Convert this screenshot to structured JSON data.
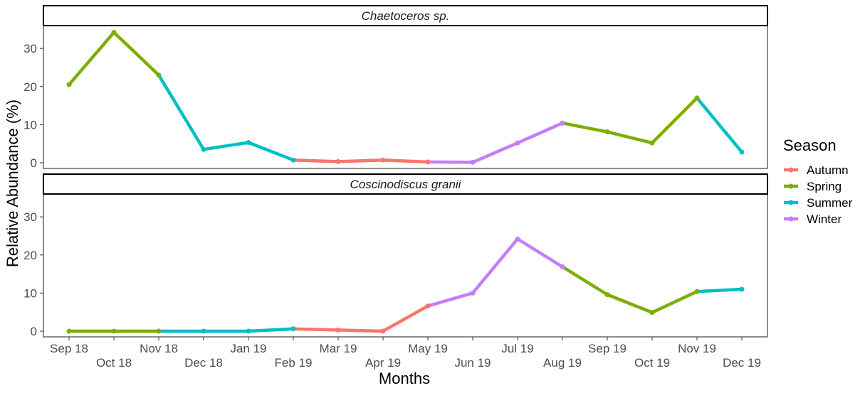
{
  "chart_data": {
    "type": "line",
    "xlabel": "Months",
    "ylabel": "Relative Abundance (%)",
    "ylim": [
      -1.5,
      36
    ],
    "yticks": [
      0,
      10,
      20,
      30
    ],
    "x": [
      "Sep 18",
      "Oct 18",
      "Nov 18",
      "Dec 18",
      "Jan 19",
      "Feb 19",
      "Mar 19",
      "Apr 19",
      "May 19",
      "Jun 19",
      "Jul 19",
      "Aug 19",
      "Sep 19",
      "Oct 19",
      "Nov 19",
      "Dec 19"
    ],
    "legend": {
      "title": "Season",
      "position": "right",
      "entries": [
        {
          "name": "Autumn",
          "color": "#F8766D"
        },
        {
          "name": "Spring",
          "color": "#7CAE00"
        },
        {
          "name": "Summer",
          "color": "#00BFC4"
        },
        {
          "name": "Winter",
          "color": "#C77CFF"
        }
      ]
    },
    "season_by_month": [
      "Spring",
      "Spring",
      "Spring",
      "Summer",
      "Summer",
      "Summer",
      "Autumn",
      "Autumn",
      "Autumn",
      "Winter",
      "Winter",
      "Winter",
      "Spring",
      "Spring",
      "Spring",
      "Summer"
    ],
    "panels": [
      {
        "title": "Chaetoceros sp.",
        "values": [
          20.5,
          34.2,
          23.0,
          3.5,
          5.3,
          0.7,
          0.3,
          0.7,
          0.2,
          0.1,
          5.2,
          10.4,
          8.1,
          5.2,
          17.0,
          2.8
        ]
      },
      {
        "title": "Coscinodiscus granii",
        "values": [
          0.0,
          0.0,
          0.0,
          0.0,
          0.0,
          0.6,
          0.3,
          0.0,
          6.6,
          10.0,
          24.2,
          16.9,
          9.6,
          4.9,
          10.4,
          11.0
        ]
      }
    ]
  }
}
